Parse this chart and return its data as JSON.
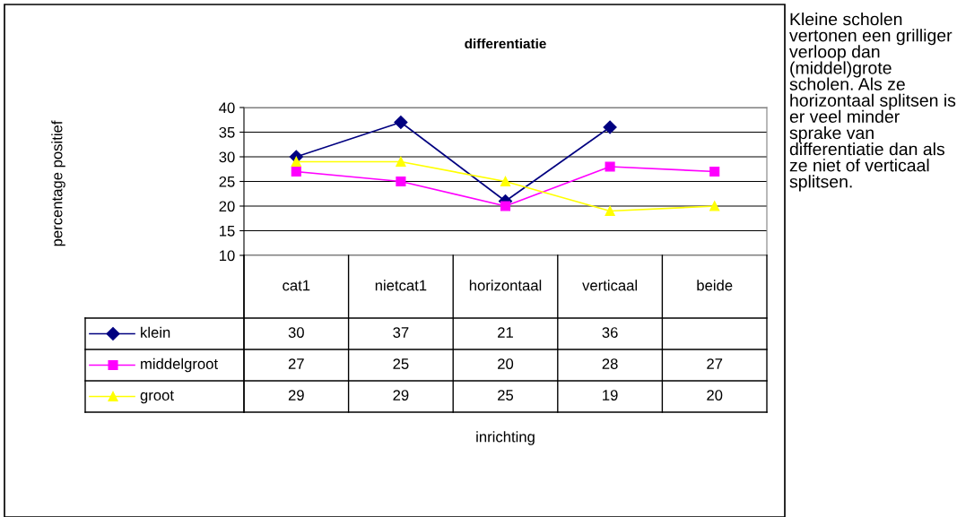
{
  "chart_data": {
    "type": "line",
    "title": "differentiatie",
    "categories": [
      "cat1",
      "nietcat1",
      "horizontaal",
      "verticaal",
      "beide"
    ],
    "series": [
      {
        "name": "klein",
        "color": "#000080",
        "marker": "diamond",
        "values": [
          30,
          37,
          21,
          36,
          null
        ]
      },
      {
        "name": "middelgroot",
        "color": "#ff00ff",
        "marker": "square",
        "values": [
          27,
          25,
          20,
          28,
          27
        ]
      },
      {
        "name": "groot",
        "color": "#ffff00",
        "marker": "triangle",
        "values": [
          29,
          29,
          25,
          19,
          20
        ]
      }
    ],
    "ylim": [
      10,
      40
    ],
    "yticks": [
      10,
      15,
      20,
      25,
      30,
      35,
      40
    ],
    "grid": "y",
    "legend": "bottom",
    "data_labels": true,
    "annotations": [
      "percentage positief",
      "inrichting",
      "Kleine scholen vertonen een grilliger verloop dan (middel)grote scholen. Als ze horizontaal splitsen is er veel minder sprake van differentiatie dan als ze niet of verticaal splitsen."
    ]
  }
}
